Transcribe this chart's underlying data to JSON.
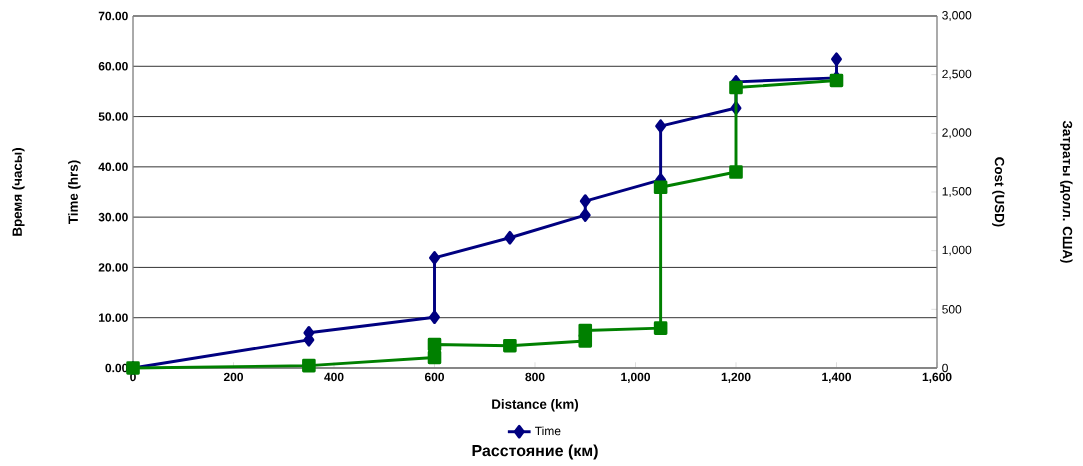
{
  "chart_data": {
    "type": "line",
    "xlabel": "Distance (km)",
    "ylabel": "Time (hrs)",
    "y2label": "Cost (USD)",
    "annotations": [
      "Время (часы)",
      "Затраты (долл. США)",
      "Расстояние (км)"
    ],
    "xlim": [
      0,
      1600
    ],
    "xticks": [
      0,
      200,
      400,
      600,
      800,
      {
        "value": 1000,
        "label": "1,000"
      },
      {
        "value": 1200,
        "label": "1,200"
      },
      {
        "value": 1400,
        "label": "1,400"
      },
      {
        "value": 1600,
        "label": "1,600"
      }
    ],
    "ylim": [
      0,
      70
    ],
    "yticks": [
      {
        "value": 0,
        "label": "0.00"
      },
      {
        "value": 10,
        "label": "10.00"
      },
      {
        "value": 20,
        "label": "20.00"
      },
      {
        "value": 30,
        "label": "30.00"
      },
      {
        "value": 40,
        "label": "40.00"
      },
      {
        "value": 50,
        "label": "50.00"
      },
      {
        "value": 60,
        "label": "60.00"
      },
      {
        "value": 70,
        "label": "70.00"
      }
    ],
    "y2lim": [
      0,
      3000
    ],
    "y2ticks": [
      0,
      500,
      {
        "value": 1000,
        "label": "1,000"
      },
      {
        "value": 1500,
        "label": "1,500"
      },
      {
        "value": 2000,
        "label": "2,000"
      },
      {
        "value": 2500,
        "label": "2,500"
      },
      {
        "value": 3000,
        "label": "3,000"
      }
    ],
    "grid": "y",
    "legend": "bottom",
    "series": [
      {
        "name": "Time",
        "color": "#000080",
        "marker": "diamond",
        "x": [
          0,
          350,
          350,
          600,
          600,
          750,
          900,
          900,
          1050,
          1050,
          1200,
          1200,
          1400,
          1400
        ],
        "values": [
          0,
          5.6,
          7,
          10.1,
          21.9,
          25.9,
          30.4,
          33.2,
          37.4,
          48.1,
          51.7,
          56.9,
          57.7,
          61.4
        ]
      },
      {
        "color": "#008000",
        "marker": "square",
        "axis": "y2",
        "x": [
          0,
          350,
          600,
          600,
          750,
          900,
          900,
          1050,
          1050,
          1200,
          1200,
          1400
        ],
        "values": [
          0,
          20,
          90,
          200,
          190,
          230,
          320,
          340,
          1540,
          1670,
          2390,
          2450
        ]
      }
    ]
  }
}
